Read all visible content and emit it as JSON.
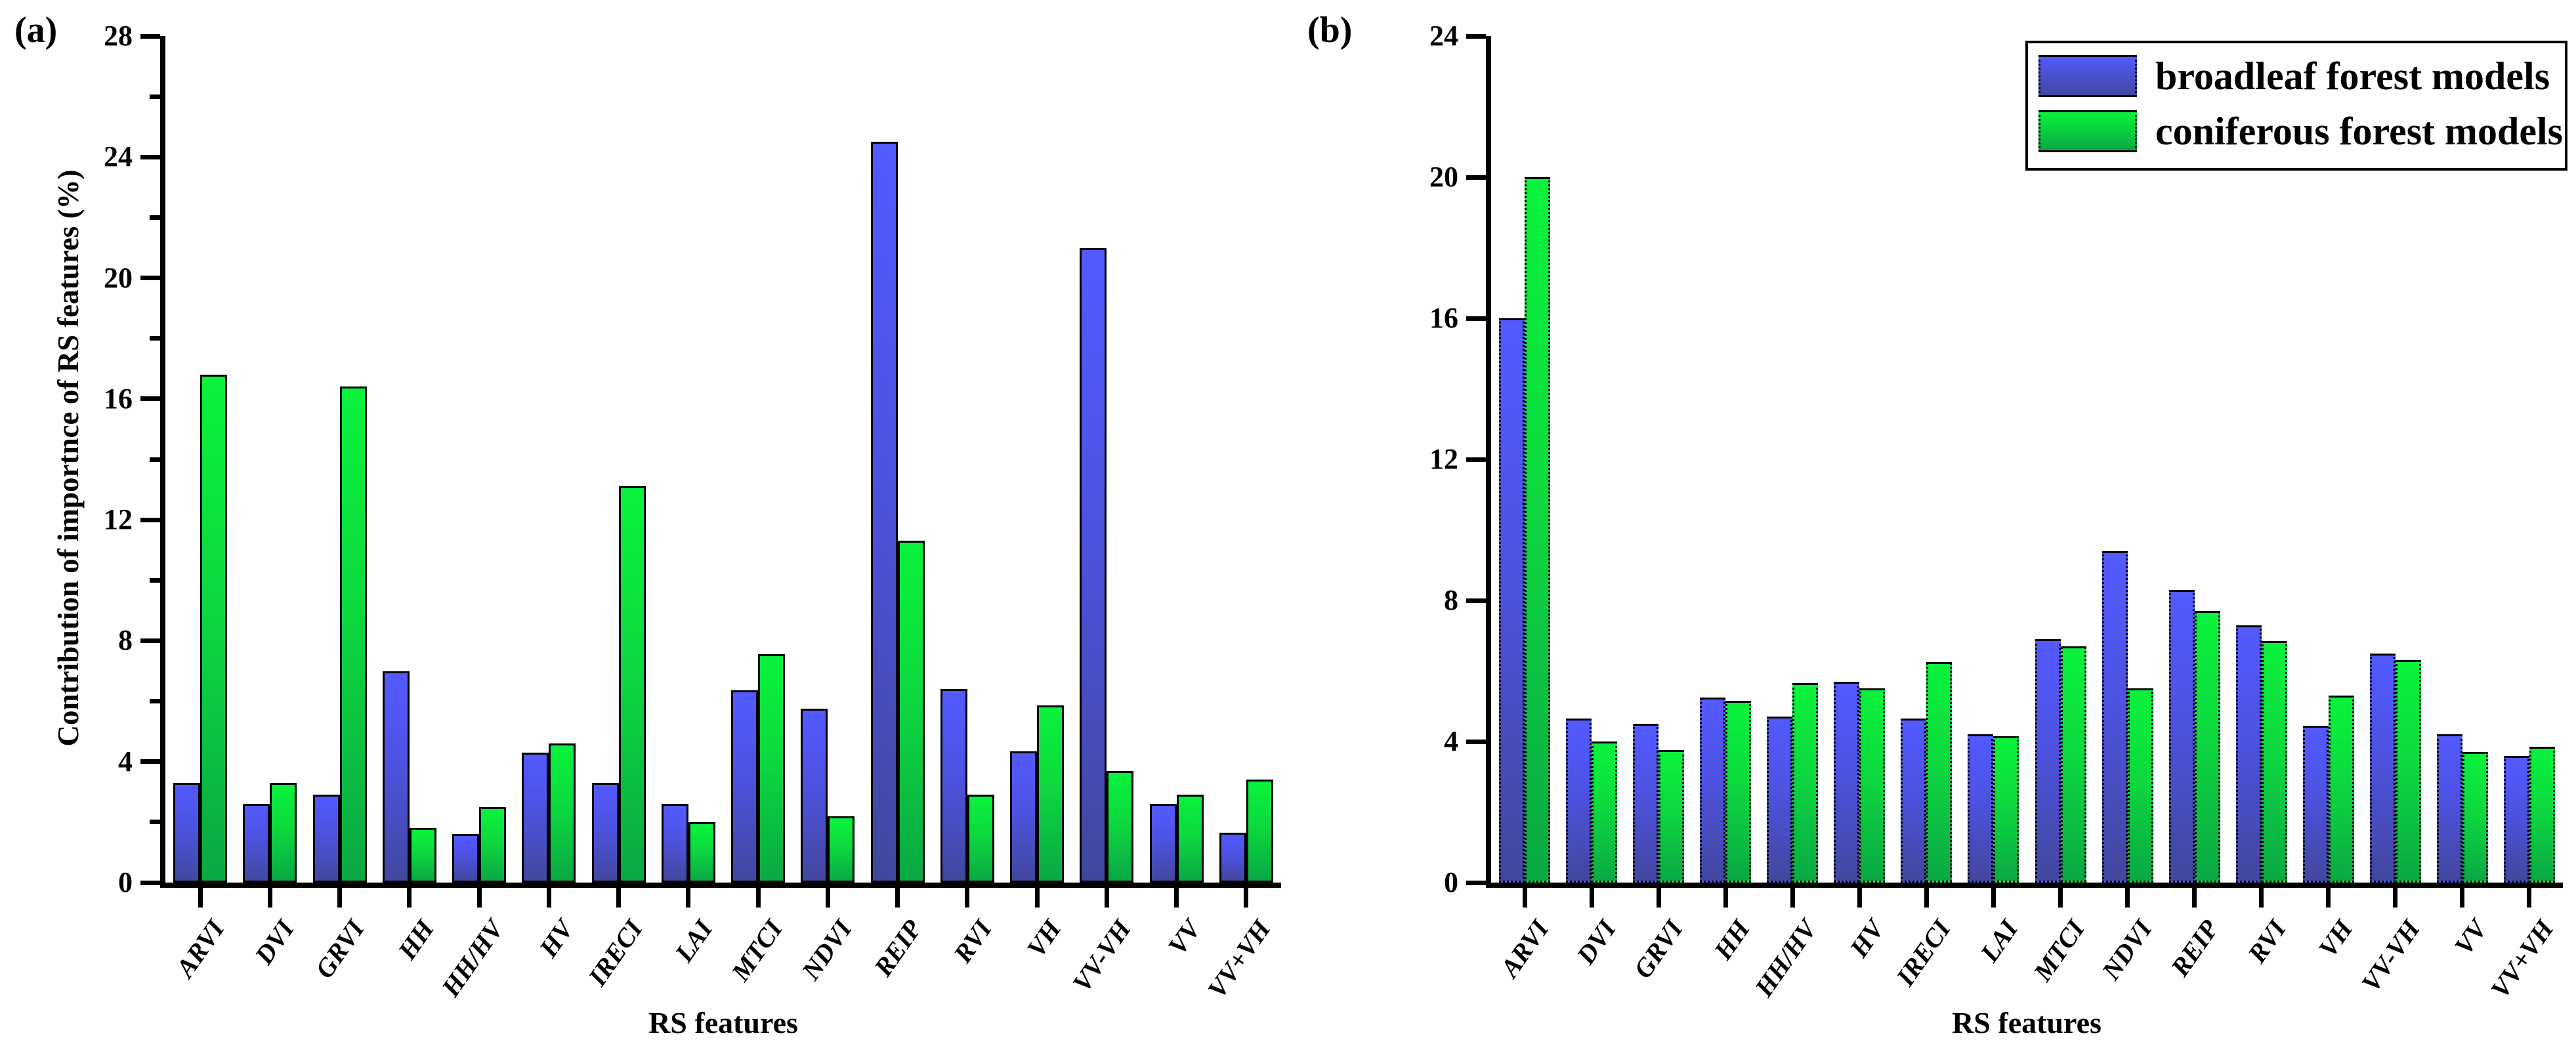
{
  "colors": {
    "broadleaf_top": "#535aff",
    "broadleaf_bottom": "#42479d",
    "coniferous_top": "#0af23c",
    "coniferous_bottom": "#0aa844",
    "axis": "#000000",
    "background": "#ffffff"
  },
  "chart_data": [
    {
      "type": "bar",
      "panel_label": "(a)",
      "title": "",
      "categories": [
        "ARVI",
        "DVI",
        "GRVI",
        "HH",
        "HH/HV",
        "HV",
        "IRECI",
        "LAI",
        "MTCI",
        "NDVI",
        "REIP",
        "RVI",
        "VH",
        "VV-VH",
        "VV",
        "VV+VH"
      ],
      "series": [
        {
          "name": "broadleaf forest models",
          "values": [
            3.3,
            2.6,
            2.9,
            7.0,
            1.6,
            4.3,
            3.3,
            2.6,
            6.35,
            5.75,
            24.5,
            6.4,
            4.35,
            21.0,
            2.6,
            1.65
          ]
        },
        {
          "name": "coniferous forest models",
          "values": [
            16.8,
            3.3,
            16.4,
            1.8,
            2.5,
            4.6,
            13.1,
            2.0,
            7.55,
            2.2,
            11.3,
            2.9,
            5.85,
            3.7,
            2.9,
            3.4
          ]
        }
      ],
      "xlabel": "RS features",
      "ylabel": "Contribution of importnce of RS features (%)",
      "ylim": [
        0,
        28
      ],
      "yticks": [
        0,
        4,
        8,
        12,
        16,
        20,
        24,
        28
      ],
      "minor_yticks": [
        2,
        6,
        10,
        14,
        18,
        22,
        26
      ],
      "grid": false,
      "bar_border_style": "solid",
      "legend_position": "none"
    },
    {
      "type": "bar",
      "panel_label": "(b)",
      "title": "",
      "categories": [
        "ARVI",
        "DVI",
        "GRVI",
        "HH",
        "HH/HV",
        "HV",
        "IRECI",
        "LAI",
        "MTCI",
        "NDVI",
        "REIP",
        "RVI",
        "VH",
        "VV-VH",
        "VV",
        "VV+VH"
      ],
      "series": [
        {
          "name": "broadleaf forest models",
          "values": [
            16.0,
            4.65,
            4.5,
            5.25,
            4.7,
            5.7,
            4.65,
            4.2,
            6.9,
            9.4,
            8.3,
            7.3,
            4.45,
            6.5,
            4.2,
            3.6
          ]
        },
        {
          "name": "coniferous forest models",
          "values": [
            20.0,
            4.0,
            3.75,
            5.15,
            5.65,
            5.5,
            6.25,
            4.15,
            6.7,
            5.5,
            7.7,
            6.85,
            5.3,
            6.3,
            3.7,
            3.85
          ]
        }
      ],
      "xlabel": "RS features",
      "ylabel": "",
      "ylim": [
        0,
        24
      ],
      "yticks": [
        0,
        4,
        8,
        12,
        16,
        20,
        24
      ],
      "minor_yticks": [],
      "grid": false,
      "bar_border_style": "dotted",
      "legend_position": "top-right"
    }
  ]
}
